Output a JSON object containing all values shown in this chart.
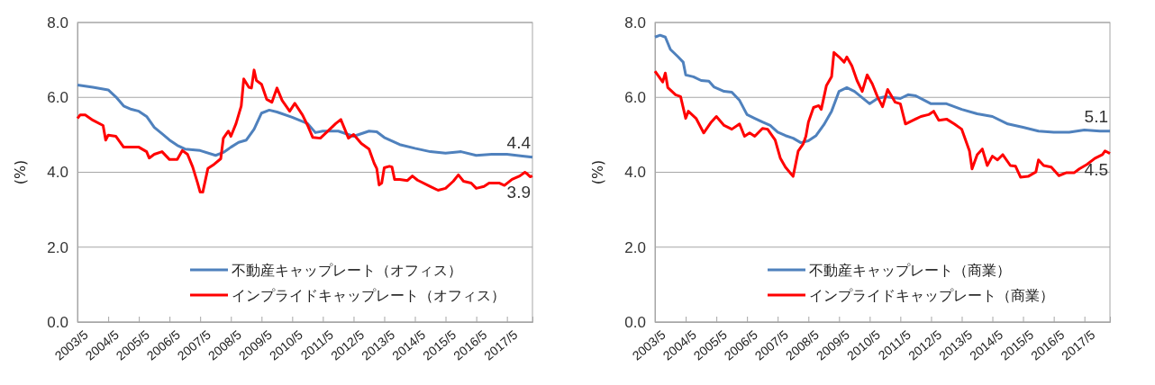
{
  "chart_data": [
    {
      "type": "line",
      "ylabel": "(%)",
      "grid": "y",
      "legend": "bottom right",
      "xlim": [
        "2003-05",
        "2018-03"
      ],
      "xticks": [
        {
          "value": "2003-05",
          "label": "2003/5"
        },
        {
          "value": "2004-05",
          "label": "2004/5"
        },
        {
          "value": "2005-05",
          "label": "2005/5"
        },
        {
          "value": "2006-05",
          "label": "2006/5"
        },
        {
          "value": "2007-05",
          "label": "2007/5"
        },
        {
          "value": "2008-05",
          "label": "2008/5"
        },
        {
          "value": "2009-05",
          "label": "2009/5"
        },
        {
          "value": "2010-05",
          "label": "2010/5"
        },
        {
          "value": "2011-05",
          "label": "2011/5"
        },
        {
          "value": "2012-05",
          "label": "2012/5"
        },
        {
          "value": "2013-05",
          "label": "2013/5"
        },
        {
          "value": "2014-05",
          "label": "2014/5"
        },
        {
          "value": "2015-05",
          "label": "2015/5"
        },
        {
          "value": "2016-05",
          "label": "2016/5"
        },
        {
          "value": "2017-05",
          "label": "2017/5"
        }
      ],
      "ylim": [
        0,
        8
      ],
      "yticks": [
        {
          "value": 0,
          "label": "0.0"
        },
        {
          "value": 2,
          "label": "2.0"
        },
        {
          "value": 4,
          "label": "4.0"
        },
        {
          "value": 6,
          "label": "6.0"
        },
        {
          "value": 8,
          "label": "8.0"
        }
      ],
      "annotations": [
        {
          "text": "4.4",
          "x": "2018-03",
          "y": 4.4
        },
        {
          "text": "3.9",
          "x": "2018-03",
          "y": 3.9
        }
      ],
      "series": [
        {
          "name": "不動産キャップレート（オフィス）",
          "color": "#4f81bd",
          "x": [
            "2003-05",
            "2003-11",
            "2004-05",
            "2004-08",
            "2004-11",
            "2005-02",
            "2005-05",
            "2005-08",
            "2005-11",
            "2006-02",
            "2006-05",
            "2006-08",
            "2006-11",
            "2007-05",
            "2007-11",
            "2008-02",
            "2008-05",
            "2008-08",
            "2008-11",
            "2009-02",
            "2009-05",
            "2009-08",
            "2009-11",
            "2010-05",
            "2010-11",
            "2011-02",
            "2011-05",
            "2011-11",
            "2012-05",
            "2012-11",
            "2013-02",
            "2013-05",
            "2013-11",
            "2014-05",
            "2014-11",
            "2015-05",
            "2015-11",
            "2016-05",
            "2016-11",
            "2017-05",
            "2017-11",
            "2018-03"
          ],
          "values": [
            6.33,
            6.27,
            6.2,
            6.01,
            5.77,
            5.68,
            5.63,
            5.49,
            5.2,
            5.03,
            4.86,
            4.72,
            4.62,
            4.58,
            4.45,
            4.53,
            4.67,
            4.8,
            4.86,
            5.15,
            5.58,
            5.66,
            5.61,
            5.47,
            5.3,
            5.06,
            5.1,
            5.1,
            4.96,
            5.1,
            5.08,
            4.93,
            4.74,
            4.64,
            4.55,
            4.51,
            4.55,
            4.45,
            4.48,
            4.48,
            4.43,
            4.4
          ]
        },
        {
          "name": "インプライドキャップレート（オフィス）",
          "color": "#ff0000",
          "x": [
            "2003-05",
            "2003-06",
            "2003-08",
            "2003-11",
            "2004-03",
            "2004-04",
            "2004-05",
            "2004-08",
            "2004-11",
            "2005-05",
            "2005-08",
            "2005-09",
            "2005-11",
            "2006-02",
            "2006-05",
            "2006-08",
            "2006-10",
            "2006-12",
            "2007-02",
            "2007-04",
            "2007-05",
            "2007-06",
            "2007-08",
            "2007-10",
            "2008-01",
            "2008-02",
            "2008-04",
            "2008-05",
            "2008-07",
            "2008-09",
            "2008-10",
            "2008-12",
            "2009-01",
            "2009-02",
            "2009-03",
            "2009-05",
            "2009-07",
            "2009-09",
            "2009-11",
            "2010-01",
            "2010-04",
            "2010-06",
            "2010-09",
            "2010-11",
            "2011-01",
            "2011-04",
            "2011-07",
            "2011-10",
            "2011-12",
            "2012-03",
            "2012-05",
            "2012-08",
            "2012-11",
            "2013-01",
            "2013-02",
            "2013-03",
            "2013-04",
            "2013-05",
            "2013-07",
            "2013-08",
            "2013-09",
            "2013-11",
            "2014-02",
            "2014-04",
            "2014-06",
            "2014-11",
            "2015-02",
            "2015-05",
            "2015-08",
            "2015-10",
            "2015-12",
            "2016-03",
            "2016-05",
            "2016-08",
            "2016-10",
            "2017-02",
            "2017-04",
            "2017-07",
            "2017-10",
            "2017-12",
            "2018-01",
            "2018-02",
            "2018-03"
          ],
          "values": [
            5.44,
            5.53,
            5.53,
            5.39,
            5.25,
            4.86,
            4.99,
            4.96,
            4.67,
            4.67,
            4.55,
            4.38,
            4.48,
            4.55,
            4.34,
            4.34,
            4.58,
            4.48,
            4.14,
            3.71,
            3.47,
            3.47,
            4.1,
            4.19,
            4.36,
            4.91,
            5.1,
            4.96,
            5.3,
            5.77,
            6.49,
            6.27,
            6.25,
            6.73,
            6.45,
            6.35,
            5.95,
            5.87,
            6.25,
            5.92,
            5.63,
            5.84,
            5.53,
            5.25,
            4.93,
            4.91,
            5.1,
            5.3,
            5.41,
            4.91,
            5.01,
            4.77,
            4.62,
            4.24,
            4.1,
            3.66,
            3.71,
            4.12,
            4.16,
            4.14,
            3.81,
            3.81,
            3.78,
            3.9,
            3.79,
            3.62,
            3.52,
            3.57,
            3.76,
            3.93,
            3.76,
            3.71,
            3.57,
            3.62,
            3.71,
            3.71,
            3.65,
            3.81,
            3.9,
            4.0,
            3.95,
            3.88,
            3.9
          ]
        }
      ]
    },
    {
      "type": "line",
      "ylabel": "(%)",
      "grid": "y",
      "legend": "bottom right",
      "xlim": [
        "2003-05",
        "2018-03"
      ],
      "xticks": [
        {
          "value": "2003-05",
          "label": "2003/5"
        },
        {
          "value": "2004-05",
          "label": "2004/5"
        },
        {
          "value": "2005-05",
          "label": "2005/5"
        },
        {
          "value": "2006-05",
          "label": "2006/5"
        },
        {
          "value": "2007-05",
          "label": "2007/5"
        },
        {
          "value": "2008-05",
          "label": "2008/5"
        },
        {
          "value": "2009-05",
          "label": "2009/5"
        },
        {
          "value": "2010-05",
          "label": "2010/5"
        },
        {
          "value": "2011-05",
          "label": "2011/5"
        },
        {
          "value": "2012-05",
          "label": "2012/5"
        },
        {
          "value": "2013-05",
          "label": "2013/5"
        },
        {
          "value": "2014-05",
          "label": "2014/5"
        },
        {
          "value": "2015-05",
          "label": "2015/5"
        },
        {
          "value": "2016-05",
          "label": "2016/5"
        },
        {
          "value": "2017-05",
          "label": "2017/5"
        }
      ],
      "ylim": [
        0,
        8
      ],
      "yticks": [
        {
          "value": 0,
          "label": "0.0"
        },
        {
          "value": 2,
          "label": "2.0"
        },
        {
          "value": 4,
          "label": "4.0"
        },
        {
          "value": 6,
          "label": "6.0"
        },
        {
          "value": 8,
          "label": "8.0"
        }
      ],
      "annotations": [
        {
          "text": "5.1",
          "x": "2018-03",
          "y": 5.1
        },
        {
          "text": "4.5",
          "x": "2018-03",
          "y": 4.5
        }
      ],
      "series": [
        {
          "name": "不動産キャップレート（商業）",
          "color": "#4f81bd",
          "x": [
            "2003-05",
            "2003-07",
            "2003-09",
            "2003-11",
            "2004-02",
            "2004-04",
            "2004-05",
            "2004-08",
            "2004-11",
            "2005-02",
            "2005-04",
            "2005-08",
            "2005-11",
            "2006-02",
            "2006-05",
            "2006-08",
            "2006-11",
            "2007-02",
            "2007-05",
            "2007-08",
            "2007-11",
            "2008-02",
            "2008-05",
            "2008-08",
            "2008-11",
            "2009-02",
            "2009-05",
            "2009-08",
            "2009-11",
            "2010-05",
            "2010-08",
            "2010-11",
            "2011-05",
            "2011-08",
            "2011-11",
            "2012-05",
            "2012-11",
            "2013-05",
            "2013-11",
            "2014-05",
            "2014-11",
            "2015-05",
            "2015-11",
            "2016-05",
            "2016-11",
            "2017-05",
            "2017-11",
            "2018-03"
          ],
          "values": [
            7.61,
            7.66,
            7.61,
            7.28,
            7.08,
            6.94,
            6.6,
            6.55,
            6.45,
            6.43,
            6.28,
            6.16,
            6.14,
            5.92,
            5.54,
            5.44,
            5.34,
            5.25,
            5.07,
            4.98,
            4.91,
            4.79,
            4.84,
            4.98,
            5.27,
            5.63,
            6.16,
            6.26,
            6.16,
            5.83,
            5.97,
            6.02,
            5.97,
            6.07,
            6.04,
            5.83,
            5.83,
            5.68,
            5.56,
            5.49,
            5.29,
            5.2,
            5.1,
            5.07,
            5.07,
            5.13,
            5.1,
            5.1
          ]
        },
        {
          "name": "インプライドキャップレート（商業）",
          "color": "#ff0000",
          "x": [
            "2003-05",
            "2003-08",
            "2003-09",
            "2003-10",
            "2004-01",
            "2004-03",
            "2004-05",
            "2004-06",
            "2004-09",
            "2004-12",
            "2005-03",
            "2005-05",
            "2005-08",
            "2005-11",
            "2006-02",
            "2006-04",
            "2006-06",
            "2006-08",
            "2006-11",
            "2007-01",
            "2007-04",
            "2007-06",
            "2007-08",
            "2007-11",
            "2008-01",
            "2008-03",
            "2008-04",
            "2008-05",
            "2008-07",
            "2008-09",
            "2008-10",
            "2008-12",
            "2009-02",
            "2009-03",
            "2009-05",
            "2009-07",
            "2009-08",
            "2009-10",
            "2009-12",
            "2010-02",
            "2010-04",
            "2010-06",
            "2010-08",
            "2010-10",
            "2010-12",
            "2011-03",
            "2011-05",
            "2011-07",
            "2011-10",
            "2012-01",
            "2012-04",
            "2012-06",
            "2012-08",
            "2012-11",
            "2013-02",
            "2013-05",
            "2013-08",
            "2013-09",
            "2013-11",
            "2014-01",
            "2014-03",
            "2014-05",
            "2014-07",
            "2014-09",
            "2014-12",
            "2015-02",
            "2015-04",
            "2015-07",
            "2015-10",
            "2015-11",
            "2016-01",
            "2016-04",
            "2016-07",
            "2016-10",
            "2017-01",
            "2017-03",
            "2017-06",
            "2017-09",
            "2017-12",
            "2018-01",
            "2018-03"
          ],
          "values": [
            6.7,
            6.41,
            6.65,
            6.26,
            6.07,
            6.02,
            5.44,
            5.63,
            5.44,
            5.05,
            5.34,
            5.49,
            5.25,
            5.15,
            5.29,
            4.96,
            5.05,
            4.96,
            5.17,
            5.15,
            4.86,
            4.38,
            4.14,
            3.89,
            4.57,
            4.76,
            4.96,
            5.34,
            5.73,
            5.78,
            5.68,
            6.31,
            6.55,
            7.2,
            7.08,
            6.94,
            7.08,
            6.84,
            6.45,
            6.16,
            6.6,
            6.36,
            6.02,
            5.75,
            6.21,
            5.87,
            5.83,
            5.29,
            5.39,
            5.49,
            5.54,
            5.63,
            5.39,
            5.42,
            5.29,
            5.15,
            4.57,
            4.09,
            4.47,
            4.62,
            4.18,
            4.43,
            4.33,
            4.47,
            4.18,
            4.16,
            3.87,
            3.89,
            4.01,
            4.33,
            4.18,
            4.14,
            3.91,
            3.99,
            3.99,
            4.09,
            4.21,
            4.37,
            4.47,
            4.57,
            4.5
          ]
        }
      ]
    }
  ]
}
